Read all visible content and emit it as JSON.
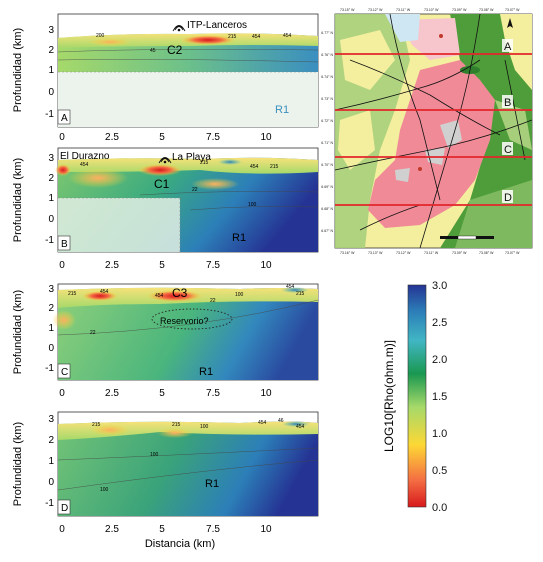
{
  "figure": {
    "y_axis_label": "Profundidad (km)",
    "x_axis_label": "Distancia (km)",
    "y_ticks": [
      "3",
      "2",
      "1",
      "0",
      "-1"
    ],
    "x_ticks": [
      "0",
      "2.5",
      "5",
      "7.5",
      "10"
    ]
  },
  "panels": [
    {
      "letter": "A",
      "labels": {
        "c": "C2",
        "r": "R1",
        "site": "ITP-Lanceros"
      },
      "contours": [
        "200",
        "215",
        "454",
        "454",
        "45"
      ]
    },
    {
      "letter": "B",
      "labels": {
        "c": "C1",
        "r": "R1",
        "site1": "El Durazno",
        "site2": "La Playa"
      },
      "contours": [
        "454",
        "215",
        "454",
        "215",
        "22",
        "100"
      ]
    },
    {
      "letter": "C",
      "labels": {
        "c": "C3",
        "r": "R1",
        "reservoir": "Reservorio?"
      },
      "contours": [
        "215",
        "454",
        "454",
        "22",
        "100",
        "22",
        "454",
        "215"
      ]
    },
    {
      "letter": "D",
      "labels": {
        "r": "R1"
      },
      "contours": [
        "215",
        "215",
        "100",
        "454",
        "46",
        "454",
        "100",
        "100"
      ]
    }
  ],
  "map": {
    "profile_labels": [
      "A",
      "B",
      "C",
      "D"
    ],
    "top_coords": [
      "73.15° W",
      "73.12° W",
      "73.11° W",
      "73.10° W",
      "73.09° W",
      "73.08° W",
      "73.07° W"
    ],
    "bottom_coords": [
      "73.16° W",
      "73.13° W",
      "73.12° W",
      "73.11° W",
      "73.09° W",
      "73.08° W",
      "73.07° W"
    ],
    "left_coords": [
      "6.77° N",
      "6.76° N",
      "6.74° N",
      "6.73° N",
      "6.72° N",
      "6.71° N",
      "6.70° N",
      "6.69° N",
      "6.68° N",
      "6.67° N"
    ],
    "colors": {
      "profile_line": "#e3262b",
      "volcanic": "#f08a97",
      "forest": "#4f9c3a",
      "light_green": "#a7cf7b",
      "yellow": "#f4ef9e"
    }
  },
  "colorbar": {
    "title": "LOG10[Rho(ohm.m)]",
    "ticks": [
      "3.0",
      "2.5",
      "2.0",
      "1.5",
      "1.0",
      "0.5",
      "0.0"
    ],
    "colors": [
      "#d7191c",
      "#f46d43",
      "#fdd835",
      "#a6d96a",
      "#1a9850",
      "#41b6c4",
      "#2c7fb8",
      "#253494"
    ]
  }
}
